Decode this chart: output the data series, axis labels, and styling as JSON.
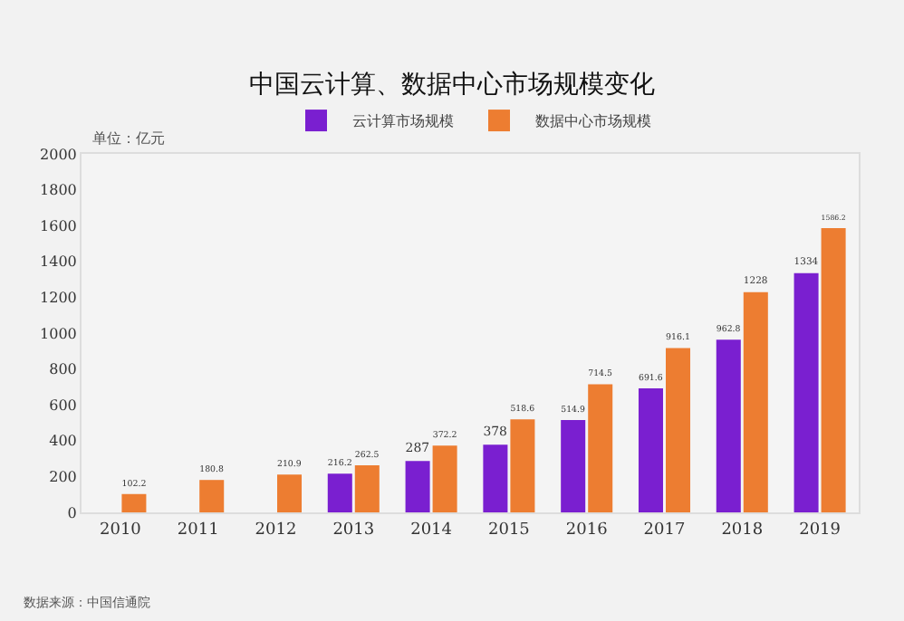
{
  "chart_data": {
    "type": "bar",
    "title": "中国云计算、数据中心市场规模变化",
    "ylabel": "单位：亿元",
    "categories": [
      "2010",
      "2011",
      "2012",
      "2013",
      "2014",
      "2015",
      "2016",
      "2017",
      "2018",
      "2019"
    ],
    "series": [
      {
        "name": "云计算市场规模",
        "color": "#7a1fd0",
        "values": [
          null,
          null,
          null,
          216.2,
          287,
          378,
          514.9,
          691.6,
          962.8,
          1334
        ]
      },
      {
        "name": "数据中心市场规模",
        "color": "#ed7d31",
        "values": [
          102.2,
          180.8,
          210.9,
          262.5,
          372.2,
          518.6,
          714.5,
          916.1,
          1228,
          1586.2
        ]
      }
    ],
    "ylim": [
      0,
      2000
    ],
    "yticks": [
      0,
      200,
      400,
      600,
      800,
      1000,
      1200,
      1400,
      1600,
      1800,
      2000
    ],
    "data_labels": true,
    "legend": "top",
    "grid": false,
    "annotations": [
      "数据来源：中国信通院"
    ]
  }
}
